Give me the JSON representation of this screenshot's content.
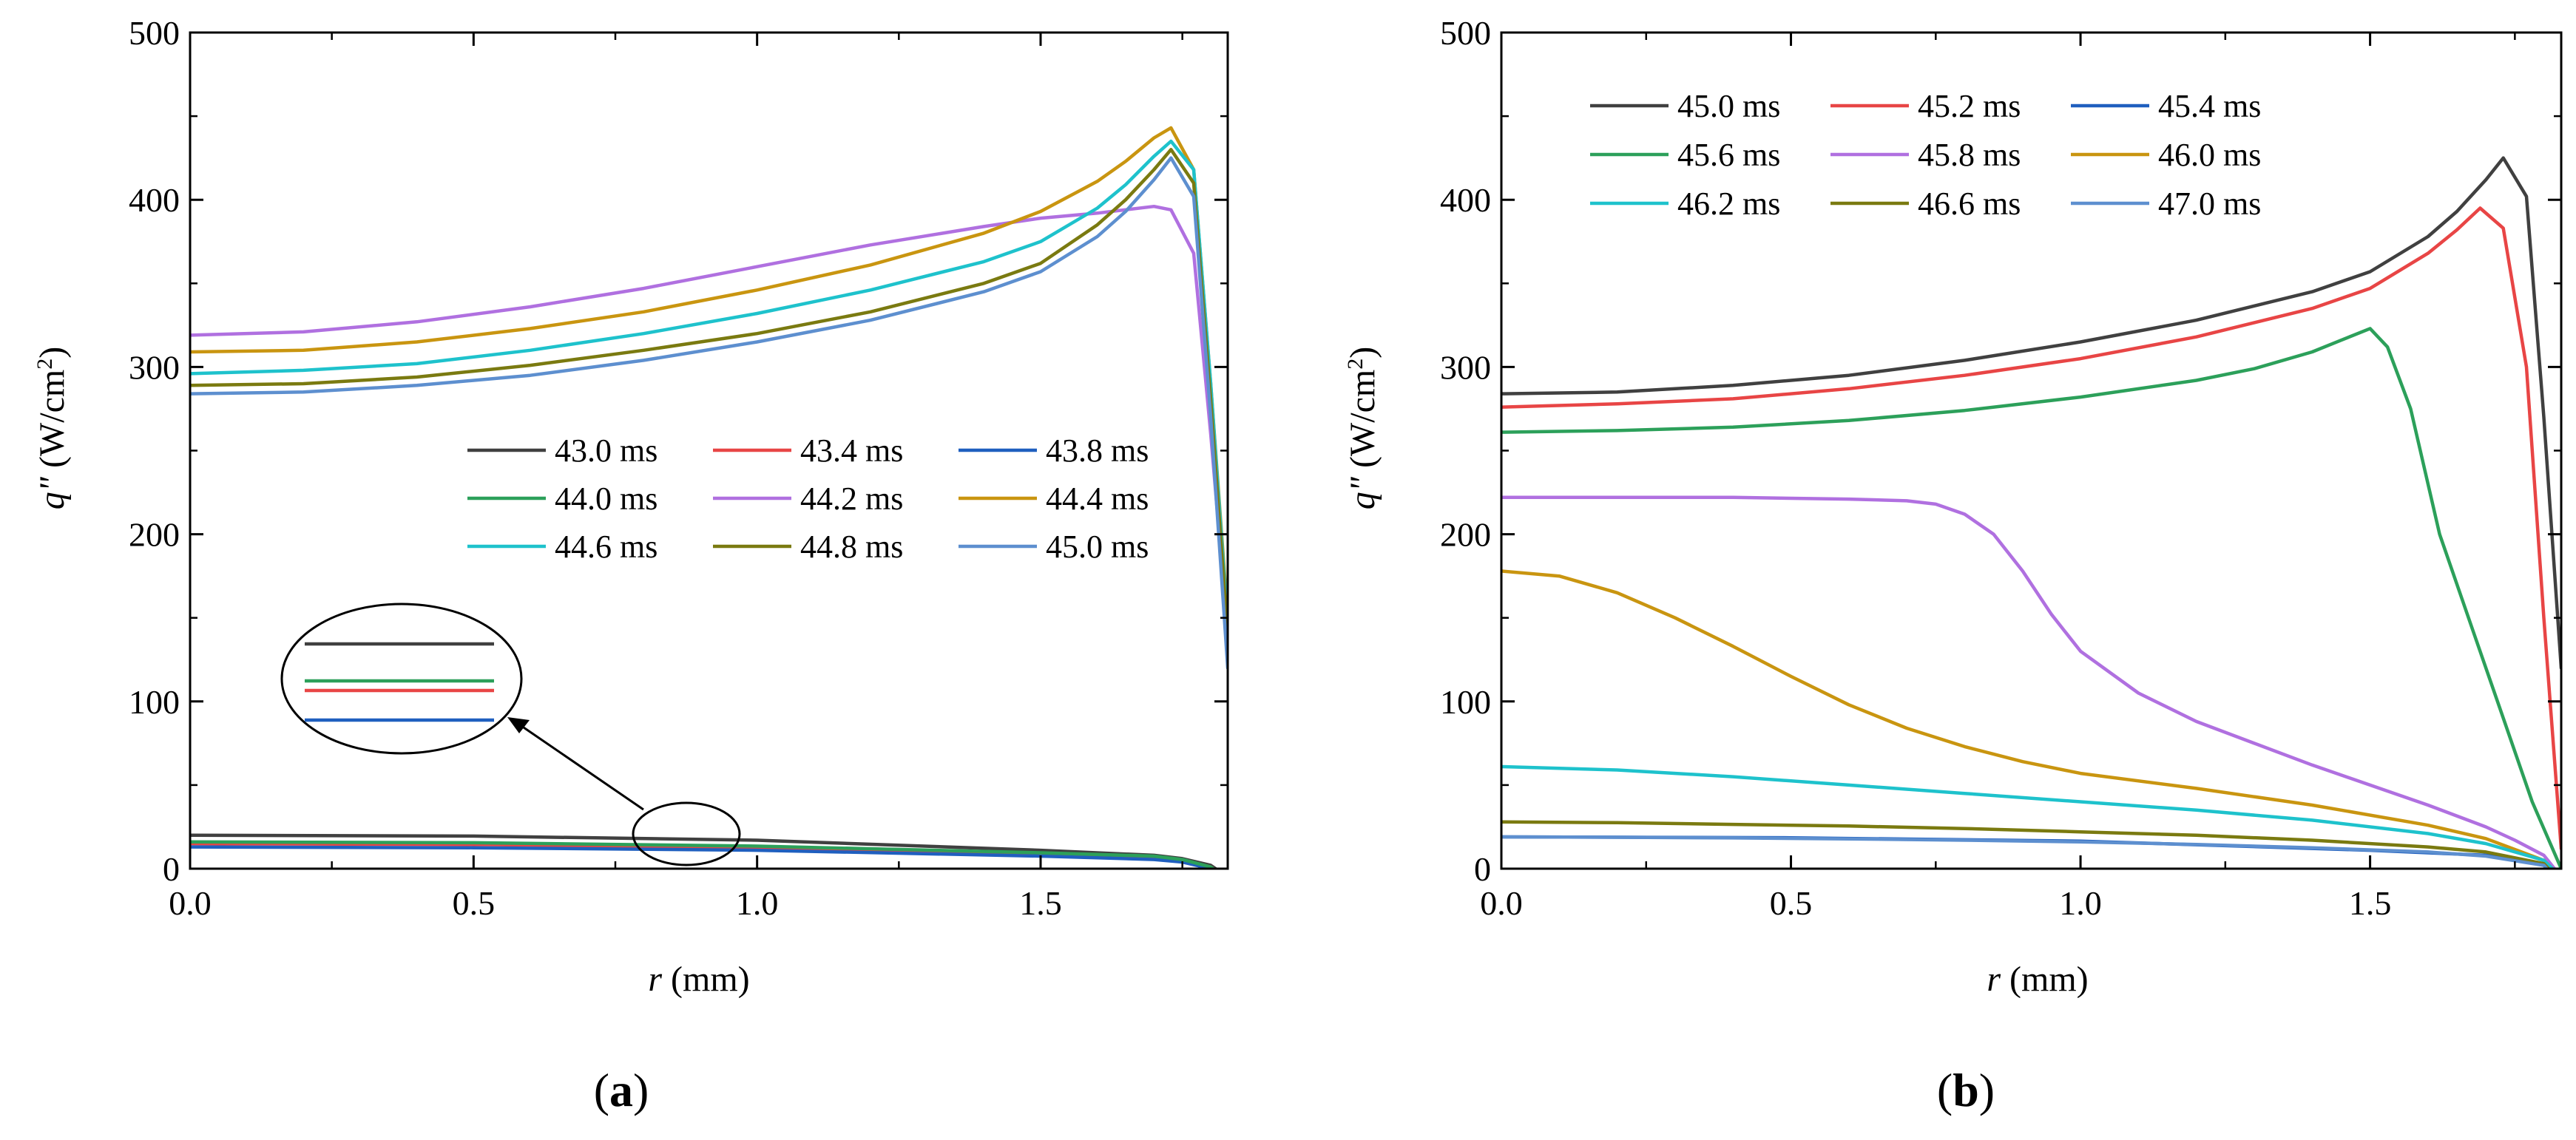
{
  "chart_data": [
    {
      "type": "line",
      "panel_label": "a",
      "xlabel_var": "r",
      "xlabel_unit": " (mm)",
      "ylabel_var": "q\"",
      "ylabel_unit_pre": " (W/cm",
      "ylabel_unit_sup": "2",
      "ylabel_unit_post": ")",
      "xlim": [
        0,
        1.83
      ],
      "ylim": [
        0,
        500
      ],
      "xticks": [
        0.0,
        0.5,
        1.0,
        1.5
      ],
      "xtick_labels": [
        "0.0",
        "0.5",
        "1.0",
        "1.5"
      ],
      "yticks": [
        0,
        100,
        200,
        300,
        400,
        500
      ],
      "ytick_labels": [
        "0",
        "100",
        "200",
        "300",
        "400",
        "500"
      ],
      "legend_position": "center-right",
      "annotation": "zoom inset of curves near r = 0.87 mm",
      "series": [
        {
          "name": "43.0 ms",
          "color": "#404040",
          "x": [
            0,
            0.5,
            1.0,
            1.5,
            1.7,
            1.75,
            1.8,
            1.83
          ],
          "y": [
            20,
            19.5,
            17,
            11,
            8,
            6,
            2,
            -5
          ]
        },
        {
          "name": "43.4 ms",
          "color": "#e84545",
          "x": [
            0,
            0.5,
            1.0,
            1.5,
            1.7,
            1.75,
            1.8,
            1.83
          ],
          "y": [
            15,
            14.5,
            12.5,
            9,
            7,
            5,
            1,
            -6
          ]
        },
        {
          "name": "43.8 ms",
          "color": "#1f5fbf",
          "x": [
            0,
            0.5,
            1.0,
            1.5,
            1.7,
            1.75,
            1.8,
            1.83
          ],
          "y": [
            13,
            12.5,
            11,
            7.5,
            5.5,
            4,
            0,
            -8
          ]
        },
        {
          "name": "44.0 ms",
          "color": "#2ca05a",
          "x": [
            0,
            0.5,
            1.0,
            1.5,
            1.7,
            1.75,
            1.8,
            1.83
          ],
          "y": [
            16,
            15.5,
            13.5,
            9.5,
            7.5,
            5.5,
            1,
            -6
          ]
        },
        {
          "name": "44.2 ms",
          "color": "#b070e0",
          "x": [
            0,
            0.2,
            0.4,
            0.6,
            0.8,
            1.0,
            1.2,
            1.4,
            1.5,
            1.6,
            1.7,
            1.73,
            1.77,
            1.8,
            1.83
          ],
          "y": [
            319,
            321,
            327,
            336,
            347,
            360,
            373,
            384,
            389,
            392,
            396,
            394,
            368,
            260,
            140
          ]
        },
        {
          "name": "44.4 ms",
          "color": "#c99510",
          "x": [
            0,
            0.2,
            0.4,
            0.6,
            0.8,
            1.0,
            1.2,
            1.4,
            1.5,
            1.6,
            1.65,
            1.7,
            1.73,
            1.77,
            1.8,
            1.83
          ],
          "y": [
            309,
            310,
            315,
            323,
            333,
            346,
            361,
            380,
            393,
            411,
            423,
            437,
            443,
            418,
            290,
            150
          ]
        },
        {
          "name": "44.6 ms",
          "color": "#1ec2cc",
          "x": [
            0,
            0.2,
            0.4,
            0.6,
            0.8,
            1.0,
            1.2,
            1.4,
            1.5,
            1.6,
            1.65,
            1.7,
            1.73,
            1.77,
            1.8,
            1.83
          ],
          "y": [
            296,
            298,
            302,
            310,
            320,
            332,
            346,
            363,
            375,
            395,
            409,
            426,
            435,
            418,
            290,
            145
          ]
        },
        {
          "name": "44.8 ms",
          "color": "#7a7a10",
          "x": [
            0,
            0.2,
            0.4,
            0.6,
            0.8,
            1.0,
            1.2,
            1.4,
            1.5,
            1.6,
            1.65,
            1.7,
            1.73,
            1.77,
            1.8,
            1.83
          ],
          "y": [
            289,
            290,
            294,
            301,
            310,
            320,
            333,
            350,
            362,
            385,
            400,
            418,
            430,
            410,
            280,
            140
          ]
        },
        {
          "name": "45.0 ms",
          "color": "#5d8fcf",
          "x": [
            0,
            0.2,
            0.4,
            0.6,
            0.8,
            1.0,
            1.2,
            1.4,
            1.5,
            1.6,
            1.65,
            1.7,
            1.73,
            1.77,
            1.8,
            1.83
          ],
          "y": [
            284,
            285,
            289,
            295,
            304,
            315,
            328,
            345,
            357,
            378,
            393,
            412,
            425,
            402,
            270,
            120
          ]
        }
      ]
    },
    {
      "type": "line",
      "panel_label": "b",
      "xlabel_var": "r",
      "xlabel_unit": " (mm)",
      "ylabel_var": "q\"",
      "ylabel_unit_pre": " (W/cm",
      "ylabel_unit_sup": "2",
      "ylabel_unit_post": ")",
      "xlim": [
        0,
        1.83
      ],
      "ylim": [
        0,
        500
      ],
      "xticks": [
        0.0,
        0.5,
        1.0,
        1.5
      ],
      "xtick_labels": [
        "0.0",
        "0.5",
        "1.0",
        "1.5"
      ],
      "yticks": [
        0,
        100,
        200,
        300,
        400,
        500
      ],
      "ytick_labels": [
        "0",
        "100",
        "200",
        "300",
        "400",
        "500"
      ],
      "legend_position": "top-left",
      "series": [
        {
          "name": "45.0 ms",
          "color": "#404040",
          "x": [
            0,
            0.2,
            0.4,
            0.6,
            0.8,
            1.0,
            1.2,
            1.4,
            1.5,
            1.6,
            1.65,
            1.7,
            1.73,
            1.77,
            1.8,
            1.83
          ],
          "y": [
            284,
            285,
            289,
            295,
            304,
            315,
            328,
            345,
            357,
            378,
            393,
            412,
            425,
            402,
            270,
            120
          ]
        },
        {
          "name": "45.2 ms",
          "color": "#e84545",
          "x": [
            0,
            0.2,
            0.4,
            0.6,
            0.8,
            1.0,
            1.2,
            1.4,
            1.5,
            1.6,
            1.65,
            1.69,
            1.73,
            1.77,
            1.8,
            1.83
          ],
          "y": [
            276,
            278,
            281,
            287,
            295,
            305,
            318,
            335,
            347,
            368,
            382,
            395,
            383,
            300,
            150,
            12
          ]
        },
        {
          "name": "45.4 ms",
          "color": "#1f5fbf",
          "x": [
            0,
            0.5,
            1.0,
            1.5,
            1.7,
            1.8,
            1.83
          ],
          "y": [
            19,
            18.5,
            16.5,
            11,
            8,
            3,
            -10
          ]
        },
        {
          "name": "45.6 ms",
          "color": "#2ca05a",
          "x": [
            0,
            0.2,
            0.4,
            0.6,
            0.8,
            1.0,
            1.2,
            1.3,
            1.4,
            1.45,
            1.5,
            1.53,
            1.57,
            1.62,
            1.68,
            1.73,
            1.78,
            1.83
          ],
          "y": [
            261,
            262,
            264,
            268,
            274,
            282,
            292,
            299,
            309,
            316,
            323,
            312,
            275,
            200,
            140,
            90,
            40,
            0
          ]
        },
        {
          "name": "45.8 ms",
          "color": "#b070e0",
          "x": [
            0,
            0.2,
            0.4,
            0.6,
            0.7,
            0.75,
            0.8,
            0.85,
            0.9,
            0.95,
            1.0,
            1.1,
            1.2,
            1.3,
            1.4,
            1.5,
            1.6,
            1.7,
            1.75,
            1.8,
            1.83
          ],
          "y": [
            222,
            222,
            222,
            221,
            220,
            218,
            212,
            200,
            178,
            152,
            130,
            105,
            88,
            75,
            62,
            50,
            38,
            25,
            17,
            8,
            -5
          ]
        },
        {
          "name": "46.0 ms",
          "color": "#c99510",
          "x": [
            0,
            0.1,
            0.2,
            0.3,
            0.4,
            0.5,
            0.6,
            0.7,
            0.8,
            0.9,
            1.0,
            1.2,
            1.4,
            1.6,
            1.7,
            1.8,
            1.83
          ],
          "y": [
            178,
            175,
            165,
            150,
            133,
            115,
            98,
            84,
            73,
            64,
            57,
            48,
            38,
            26,
            18,
            5,
            -5
          ]
        },
        {
          "name": "46.2 ms",
          "color": "#1ec2cc",
          "x": [
            0,
            0.2,
            0.4,
            0.6,
            0.8,
            1.0,
            1.2,
            1.4,
            1.6,
            1.7,
            1.8,
            1.83
          ],
          "y": [
            61,
            59,
            55,
            50,
            45,
            40,
            35,
            29,
            21,
            15,
            5,
            -5
          ]
        },
        {
          "name": "46.6 ms",
          "color": "#7a7a10",
          "x": [
            0,
            0.2,
            0.4,
            0.6,
            0.8,
            1.0,
            1.2,
            1.4,
            1.6,
            1.7,
            1.8,
            1.83
          ],
          "y": [
            28,
            27.5,
            26.5,
            25.5,
            24,
            22,
            20,
            17,
            13,
            10,
            3,
            -8
          ]
        },
        {
          "name": "47.0 ms",
          "color": "#5d8fcf",
          "x": [
            0,
            0.2,
            0.4,
            0.6,
            0.8,
            1.0,
            1.2,
            1.4,
            1.6,
            1.7,
            1.8,
            1.83
          ],
          "y": [
            19,
            18.8,
            18.4,
            17.8,
            17,
            16,
            14.5,
            12.5,
            10,
            7.5,
            2,
            -10
          ]
        }
      ]
    }
  ]
}
